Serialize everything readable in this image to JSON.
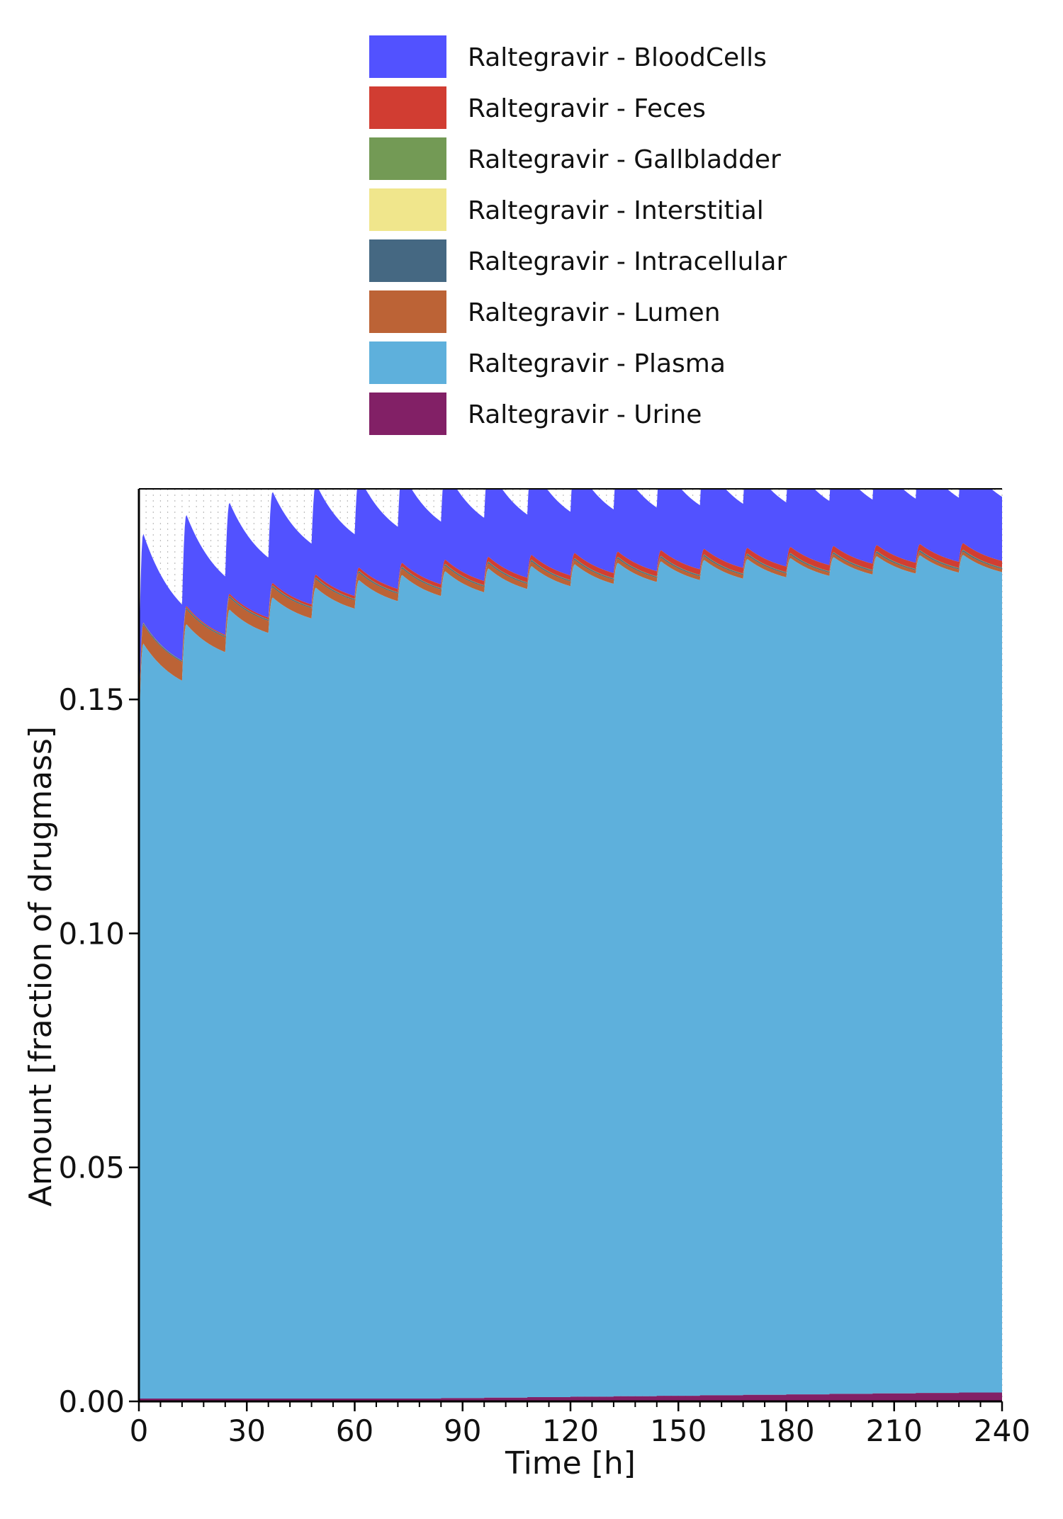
{
  "chart_data": {
    "type": "area",
    "stacked": true,
    "xlabel": "Time [h]",
    "ylabel": "Amount [fraction of drugmass]",
    "xlim": [
      0,
      240
    ],
    "ylim": [
      0,
      0.195
    ],
    "xticks": [
      0,
      30,
      60,
      90,
      120,
      150,
      180,
      210,
      240
    ],
    "xtick_labels": [
      "0",
      "30",
      "60",
      "90",
      "120",
      "150",
      "180",
      "210",
      "240"
    ],
    "yticks": [
      0,
      0.05,
      0.1,
      0.15
    ],
    "ytick_labels": [
      "0.00",
      "0.05",
      "0.10",
      "0.15"
    ],
    "dosing_interval_h": 12,
    "legend_position": "top",
    "series": [
      {
        "name": "Raltegravir - BloodCells",
        "color": "#5252ff",
        "trough_frac": [
          0.012,
          0.0125,
          0.0128,
          0.013,
          0.0132,
          0.0133,
          0.0134,
          0.0135,
          0.0135,
          0.0136,
          0.0136,
          0.0136,
          0.0137,
          0.0137,
          0.0137,
          0.0137,
          0.0137,
          0.0137,
          0.0137,
          0.0137
        ],
        "peak_frac": [
          0.019,
          0.0195,
          0.0195,
          0.0195,
          0.0195,
          0.0195,
          0.0195,
          0.0195,
          0.0195,
          0.0195,
          0.0195,
          0.0195,
          0.0195,
          0.0195,
          0.0195,
          0.0195,
          0.0195,
          0.0195,
          0.0195,
          0.0195
        ]
      },
      {
        "name": "Raltegravir - Feces",
        "color": "#d13d32",
        "trough_frac": [
          0.0,
          0.0002,
          0.0004,
          0.0005,
          0.0006,
          0.0007,
          0.0008,
          0.0009,
          0.001,
          0.001,
          0.0011,
          0.0011,
          0.0012,
          0.0012,
          0.0012,
          0.0013,
          0.0013,
          0.0013,
          0.0013,
          0.0014
        ],
        "peak_frac": [
          0.0001,
          0.0003,
          0.0004,
          0.0005,
          0.0006,
          0.0007,
          0.0008,
          0.0009,
          0.001,
          0.001,
          0.0011,
          0.0011,
          0.0012,
          0.0012,
          0.0012,
          0.0013,
          0.0013,
          0.0013,
          0.0013,
          0.0014
        ]
      },
      {
        "name": "Raltegravir - Gallbladder",
        "color": "#739a55",
        "trough_frac": [
          0.0001,
          0.0001,
          0.0001,
          0.0001,
          0.0001,
          0.0001,
          0.0001,
          0.0001,
          0.0001,
          0.0001,
          0.0001,
          0.0001,
          0.0001,
          0.0001,
          0.0001,
          0.0001,
          0.0001,
          0.0001,
          0.0001,
          0.0001
        ],
        "peak_frac": [
          0.0001,
          0.0001,
          0.0001,
          0.0001,
          0.0001,
          0.0001,
          0.0001,
          0.0001,
          0.0001,
          0.0001,
          0.0001,
          0.0001,
          0.0001,
          0.0001,
          0.0001,
          0.0001,
          0.0001,
          0.0001,
          0.0001,
          0.0001
        ]
      },
      {
        "name": "Raltegravir - Interstitial",
        "color": "#f0e68c",
        "trough_frac": [
          0.0,
          0.0,
          0.0,
          0.0,
          0.0,
          0.0,
          0.0,
          0.0,
          0.0,
          0.0,
          0.0,
          0.0,
          0.0,
          0.0,
          0.0,
          0.0,
          0.0,
          0.0,
          0.0,
          0.0
        ],
        "peak_frac": [
          0.0,
          0.0,
          0.0,
          0.0,
          0.0,
          0.0,
          0.0,
          0.0,
          0.0,
          0.0,
          0.0,
          0.0,
          0.0,
          0.0,
          0.0,
          0.0,
          0.0,
          0.0,
          0.0,
          0.0
        ]
      },
      {
        "name": "Raltegravir - Intracellular",
        "color": "#456882",
        "trough_frac": [
          0.0002,
          0.0002,
          0.0002,
          0.0002,
          0.0002,
          0.0002,
          0.0002,
          0.0002,
          0.0002,
          0.0002,
          0.0002,
          0.0002,
          0.0002,
          0.0002,
          0.0002,
          0.0002,
          0.0002,
          0.0002,
          0.0002,
          0.0002
        ],
        "peak_frac": [
          0.0003,
          0.0003,
          0.0003,
          0.0003,
          0.0003,
          0.0003,
          0.0003,
          0.0003,
          0.0003,
          0.0003,
          0.0003,
          0.0003,
          0.0003,
          0.0003,
          0.0003,
          0.0003,
          0.0003,
          0.0003,
          0.0003,
          0.0003
        ]
      },
      {
        "name": "Raltegravir - Lumen",
        "color": "#bc6336",
        "trough_frac": [
          0.004,
          0.0032,
          0.0026,
          0.0022,
          0.0018,
          0.0016,
          0.0014,
          0.0012,
          0.0011,
          0.001,
          0.0009,
          0.0009,
          0.0008,
          0.0008,
          0.0008,
          0.0007,
          0.0007,
          0.0007,
          0.0007,
          0.0007
        ],
        "peak_frac": [
          0.004,
          0.0032,
          0.0026,
          0.0022,
          0.0018,
          0.0016,
          0.0014,
          0.0012,
          0.0011,
          0.001,
          0.0009,
          0.0009,
          0.0008,
          0.0008,
          0.0008,
          0.0007,
          0.0007,
          0.0007,
          0.0007,
          0.0007
        ]
      },
      {
        "name": "Raltegravir - Plasma",
        "color": "#5eb0dc",
        "trough": [
          0.14,
          0.154,
          0.16,
          0.164,
          0.167,
          0.169,
          0.1705,
          0.1715,
          0.1722,
          0.1728,
          0.1733,
          0.1737,
          0.174,
          0.1743,
          0.1745,
          0.1747,
          0.1749,
          0.1751,
          0.1752,
          0.1753
        ],
        "peak": [
          0.162,
          0.166,
          0.169,
          0.1715,
          0.1735,
          0.175,
          0.176,
          0.1767,
          0.1772,
          0.1776,
          0.1779,
          0.1781,
          0.1783,
          0.1785,
          0.1786,
          0.1787,
          0.1788,
          0.1789,
          0.179,
          0.179
        ]
      },
      {
        "name": "Raltegravir - Urine",
        "color": "#822066",
        "trough": [
          0.0,
          0.0001,
          0.0002,
          0.0003,
          0.0004,
          0.0005,
          0.0006,
          0.0007,
          0.0008,
          0.0009,
          0.001,
          0.0011,
          0.0012,
          0.0013,
          0.0014,
          0.0015,
          0.0016,
          0.0017,
          0.0018,
          0.0019
        ],
        "peak": [
          0.0,
          0.0001,
          0.0002,
          0.0003,
          0.0004,
          0.0005,
          0.0006,
          0.0007,
          0.0008,
          0.0009,
          0.001,
          0.0011,
          0.0012,
          0.0013,
          0.0014,
          0.0015,
          0.0016,
          0.0017,
          0.0018,
          0.0019
        ]
      }
    ]
  }
}
